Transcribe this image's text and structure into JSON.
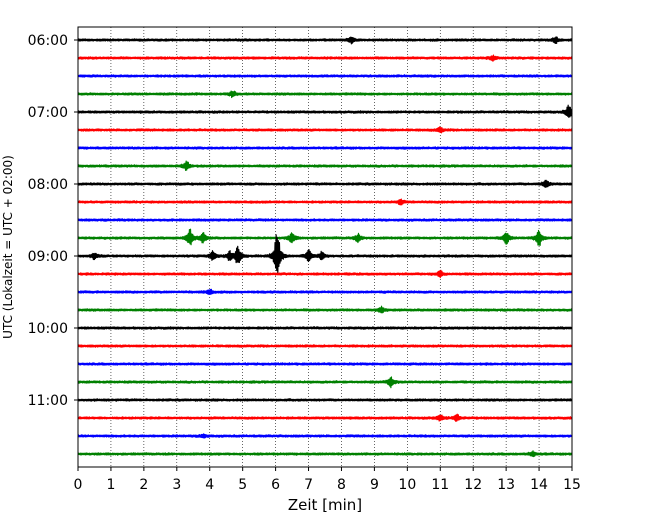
{
  "chart_data": {
    "type": "line",
    "title": "",
    "xlabel": "Zeit  [min]",
    "ylabel": "UTC (Lokalzeit = UTC + 02:00)",
    "xlim": [
      0,
      15
    ],
    "x_ticks": [
      "0",
      "1",
      "2",
      "3",
      "4",
      "5",
      "6",
      "7",
      "8",
      "9",
      "10",
      "11",
      "12",
      "13",
      "14",
      "15"
    ],
    "y_tick_labels": [
      "06:00",
      "07:00",
      "08:00",
      "09:00",
      "10:00",
      "11:00"
    ],
    "grid": "vertical dotted",
    "row_colors": [
      "#000000",
      "#ff0000",
      "#0000ff",
      "#008000"
    ],
    "rows": [
      "06:00",
      "06:15",
      "06:30",
      "06:45",
      "07:00",
      "07:15",
      "07:30",
      "07:45",
      "08:00",
      "08:15",
      "08:30",
      "08:45",
      "09:00",
      "09:15",
      "09:30",
      "09:45",
      "10:00",
      "10:15",
      "10:30",
      "10:45",
      "11:00",
      "11:15",
      "11:30",
      "11:45"
    ],
    "events": [
      {
        "row": 0,
        "t": 8.3,
        "amp": 0.25
      },
      {
        "row": 0,
        "t": 14.5,
        "amp": 0.25
      },
      {
        "row": 1,
        "t": 12.6,
        "amp": 0.2
      },
      {
        "row": 3,
        "t": 4.7,
        "amp": 0.25
      },
      {
        "row": 4,
        "t": 14.9,
        "amp": 0.55
      },
      {
        "row": 5,
        "t": 11.0,
        "amp": 0.2
      },
      {
        "row": 7,
        "t": 3.3,
        "amp": 0.35
      },
      {
        "row": 8,
        "t": 14.2,
        "amp": 0.35
      },
      {
        "row": 9,
        "t": 9.8,
        "amp": 0.2
      },
      {
        "row": 11,
        "t": 3.4,
        "amp": 0.7
      },
      {
        "row": 11,
        "t": 3.8,
        "amp": 0.4
      },
      {
        "row": 11,
        "t": 6.5,
        "amp": 0.45
      },
      {
        "row": 11,
        "t": 8.5,
        "amp": 0.3
      },
      {
        "row": 11,
        "t": 13.0,
        "amp": 0.5
      },
      {
        "row": 11,
        "t": 14.0,
        "amp": 0.7
      },
      {
        "row": 12,
        "t": 0.5,
        "amp": 0.25
      },
      {
        "row": 12,
        "t": 4.1,
        "amp": 0.4
      },
      {
        "row": 12,
        "t": 4.6,
        "amp": 0.35
      },
      {
        "row": 12,
        "t": 4.85,
        "amp": 0.75
      },
      {
        "row": 12,
        "t": 6.05,
        "amp": 2.2
      },
      {
        "row": 12,
        "t": 7.0,
        "amp": 0.45
      },
      {
        "row": 12,
        "t": 7.4,
        "amp": 0.3
      },
      {
        "row": 13,
        "t": 11.0,
        "amp": 0.25
      },
      {
        "row": 14,
        "t": 4.0,
        "amp": 0.2
      },
      {
        "row": 15,
        "t": 9.2,
        "amp": 0.25
      },
      {
        "row": 19,
        "t": 9.5,
        "amp": 0.4
      },
      {
        "row": 21,
        "t": 11.0,
        "amp": 0.25
      },
      {
        "row": 21,
        "t": 11.5,
        "amp": 0.3
      },
      {
        "row": 22,
        "t": 3.8,
        "amp": 0.15
      },
      {
        "row": 23,
        "t": 13.8,
        "amp": 0.2
      }
    ]
  }
}
